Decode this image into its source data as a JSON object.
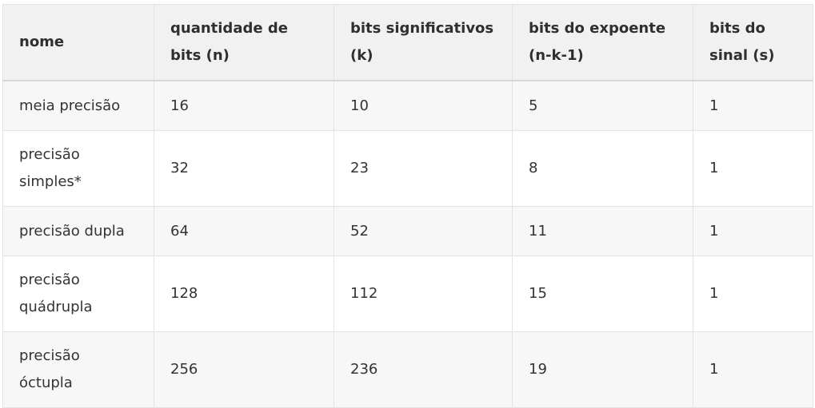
{
  "table": {
    "headers": [
      "nome",
      "quantidade de bits (n)",
      "bits significativos (k)",
      "bits do expoente (n-k-1)",
      "bits do sinal (s)"
    ],
    "rows": [
      [
        "meia precisão",
        "16",
        "10",
        "5",
        "1"
      ],
      [
        "precisão simples*",
        "32",
        "23",
        "8",
        "1"
      ],
      [
        "precisão dupla",
        "64",
        "52",
        "11",
        "1"
      ],
      [
        "precisão quádrupla",
        "128",
        "112",
        "15",
        "1"
      ],
      [
        "precisão óctupla",
        "256",
        "236",
        "19",
        "1"
      ]
    ]
  }
}
